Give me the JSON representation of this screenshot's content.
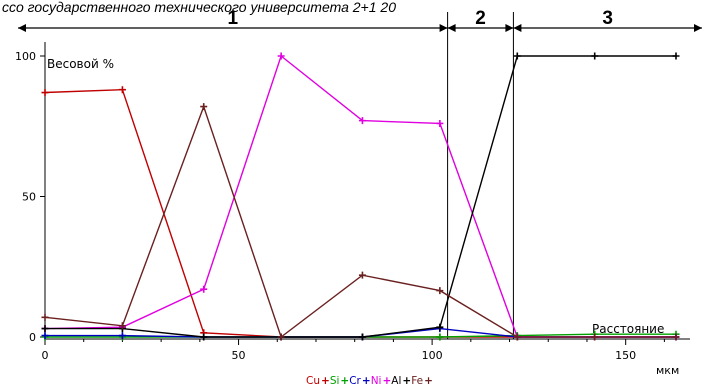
{
  "header_text": "ссо государственного технического университета 2+1 20",
  "chart_data": {
    "type": "line",
    "title": "",
    "ylabel": "Весовой %",
    "xlabel": "Расстояние",
    "x_unit": "мкм",
    "xlim": [
      0,
      165
    ],
    "ylim": [
      0,
      100
    ],
    "x_ticks": [
      0,
      50,
      100,
      150
    ],
    "y_ticks": [
      0,
      50,
      100
    ],
    "regions": [
      {
        "label": "1",
        "x_start": 0,
        "x_end": 104
      },
      {
        "label": "2",
        "x_start": 104,
        "x_end": 121
      },
      {
        "label": "3",
        "x_start": 121,
        "x_end": 165
      }
    ],
    "legend": {
      "position": "bottom-center"
    },
    "series": [
      {
        "name": "Cu",
        "color": "#c00000",
        "points": [
          [
            0,
            87
          ],
          [
            20,
            88
          ],
          [
            41,
            1.5
          ],
          [
            61,
            0
          ],
          [
            82,
            0
          ],
          [
            102,
            0
          ],
          [
            122,
            0
          ],
          [
            142,
            0
          ],
          [
            163,
            0
          ]
        ]
      },
      {
        "name": "Si",
        "color": "#00a000",
        "points": [
          [
            0,
            0
          ],
          [
            20,
            0
          ],
          [
            41,
            0
          ],
          [
            61,
            0
          ],
          [
            82,
            0
          ],
          [
            102,
            0
          ],
          [
            122,
            0.5
          ],
          [
            142,
            1
          ],
          [
            163,
            1
          ]
        ]
      },
      {
        "name": "Cr",
        "color": "#0000c0",
        "points": [
          [
            0,
            0.5
          ],
          [
            20,
            0.5
          ],
          [
            41,
            0
          ],
          [
            61,
            0
          ],
          [
            82,
            0
          ],
          [
            102,
            3
          ],
          [
            122,
            0
          ],
          [
            142,
            0
          ],
          [
            163,
            0
          ]
        ]
      },
      {
        "name": "Ni",
        "color": "#e000e0",
        "points": [
          [
            0,
            3
          ],
          [
            20,
            3.5
          ],
          [
            41,
            17
          ],
          [
            61,
            100
          ],
          [
            82,
            77
          ],
          [
            102,
            76
          ],
          [
            122,
            0
          ],
          [
            142,
            0
          ],
          [
            163,
            0
          ]
        ]
      },
      {
        "name": "Al",
        "color": "#000000",
        "points": [
          [
            0,
            3
          ],
          [
            20,
            3
          ],
          [
            41,
            0
          ],
          [
            61,
            0
          ],
          [
            82,
            0
          ],
          [
            102,
            3.5
          ],
          [
            122,
            100
          ],
          [
            142,
            100
          ],
          [
            163,
            100
          ]
        ]
      },
      {
        "name": "Fe",
        "color": "#6b2020",
        "points": [
          [
            0,
            7
          ],
          [
            20,
            4
          ],
          [
            41,
            82
          ],
          [
            61,
            0
          ],
          [
            82,
            22
          ],
          [
            102,
            16.5
          ],
          [
            122,
            0
          ],
          [
            142,
            0
          ],
          [
            163,
            0
          ]
        ]
      }
    ]
  }
}
